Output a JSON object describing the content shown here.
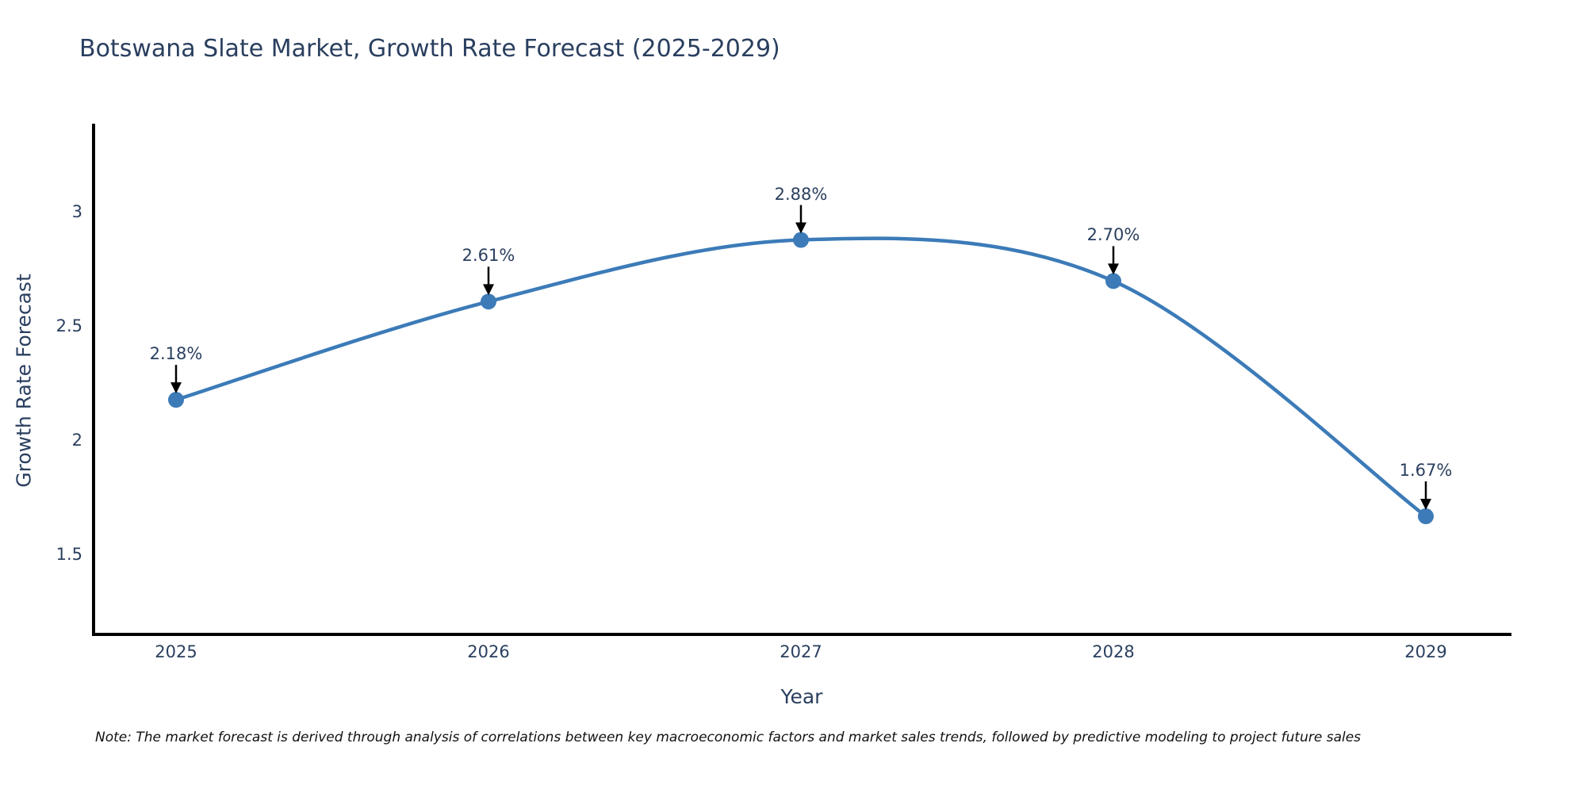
{
  "title": "Botswana Slate Market, Growth Rate Forecast (2025-2029)",
  "note": "Note: The market forecast is derived through analysis of correlations between key macroeconomic factors and market sales trends, followed by predictive modeling to project future sales",
  "colors": {
    "line": "#3c7bb8",
    "marker": "#3c7bb8",
    "axis": "#000000",
    "arrow": "#000000",
    "chart_text": "#2a3f5f",
    "note_text": "#111111",
    "background": "#ffffff"
  },
  "chart_data": {
    "type": "line",
    "title": "Botswana Slate Market, Growth Rate Forecast (2025-2029)",
    "xlabel": "Year",
    "ylabel": "Growth Rate Forecast",
    "x": [
      2025,
      2026,
      2027,
      2028,
      2029
    ],
    "series": [
      {
        "name": "Growth Rate Forecast",
        "values": [
          2.18,
          2.61,
          2.88,
          2.7,
          1.67
        ]
      }
    ],
    "point_labels": [
      "2.18%",
      "2.61%",
      "2.88%",
      "2.70%",
      "1.67%"
    ],
    "x_tick_labels": [
      "2025",
      "2026",
      "2027",
      "2028",
      "2029"
    ],
    "y_ticks": [
      1.5,
      2,
      2.5,
      3
    ],
    "y_tick_labels": [
      "1.5",
      "2",
      "2.5",
      "3"
    ],
    "ylim": [
      1.15,
      3.38
    ],
    "line_shape": "spline",
    "grid": false,
    "legend": "none",
    "annotations_style": "value label with downward arrow at each point"
  }
}
